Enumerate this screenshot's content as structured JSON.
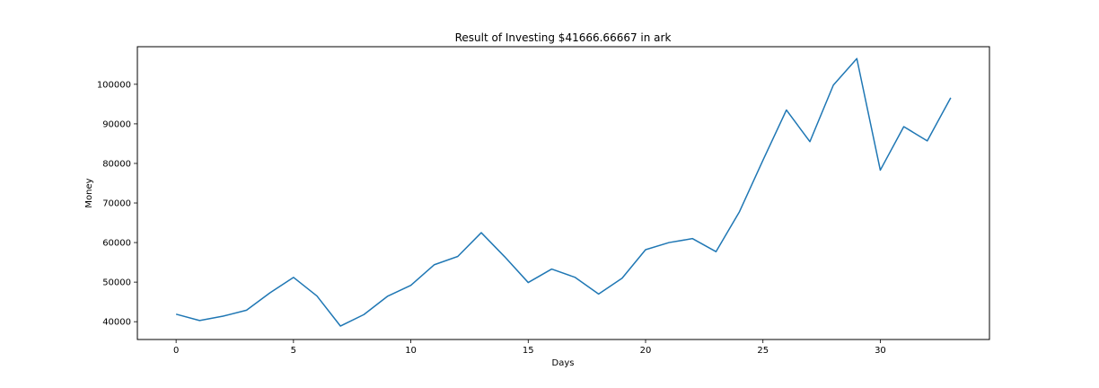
{
  "chart_data": {
    "type": "line",
    "title": "Result of Investing $41666.66667 in ark",
    "xlabel": "Days",
    "ylabel": "Money",
    "xlim": [
      -1.65,
      34.65
    ],
    "ylim": [
      35500,
      109500
    ],
    "xticks": [
      0,
      5,
      10,
      15,
      20,
      25,
      30
    ],
    "yticks": [
      40000,
      50000,
      60000,
      70000,
      80000,
      90000,
      100000
    ],
    "x": [
      0,
      1,
      2,
      3,
      4,
      5,
      6,
      7,
      8,
      9,
      10,
      11,
      12,
      13,
      14,
      15,
      16,
      17,
      18,
      19,
      20,
      21,
      22,
      23,
      24,
      25,
      26,
      27,
      28,
      29,
      30,
      31,
      32,
      33
    ],
    "series": [
      {
        "color": "#1f77b4",
        "values": [
          41900,
          40300,
          41400,
          42900,
          47300,
          51200,
          46500,
          38900,
          41800,
          46400,
          49200,
          54400,
          56500,
          62500,
          56400,
          49900,
          53300,
          51200,
          47000,
          51000,
          58200,
          60000,
          61000,
          57700,
          67800,
          80800,
          93500,
          85500,
          99800,
          106500,
          78300,
          89300,
          85700,
          96600
        ]
      }
    ]
  }
}
